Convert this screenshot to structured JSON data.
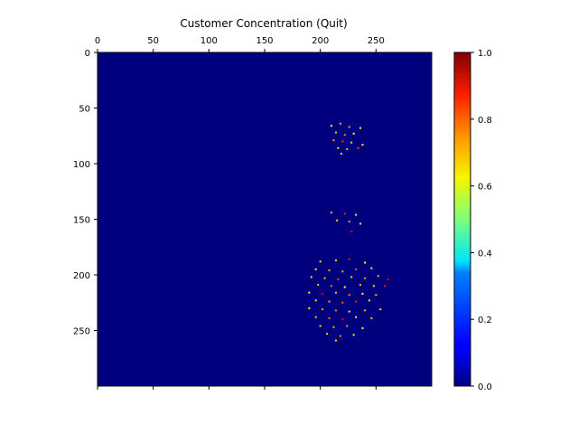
{
  "chart_data": {
    "type": "heatmap",
    "title": "Customer Concentration (Quit)",
    "xlabel": "",
    "ylabel": "",
    "colormap": "jet",
    "xlim": [
      0,
      300
    ],
    "ylim": [
      300,
      0
    ],
    "x_ticks": [
      0,
      50,
      100,
      150,
      200,
      250
    ],
    "y_ticks": [
      0,
      50,
      100,
      150,
      200,
      250
    ],
    "colorbar": {
      "range": [
        0,
        1
      ],
      "ticks": [
        "0.0",
        "0.2",
        "0.4",
        "0.6",
        "0.8",
        "1.0"
      ]
    },
    "background_value": 0.0,
    "points": [
      {
        "x": 210,
        "y": 66,
        "value": 0.65
      },
      {
        "x": 218,
        "y": 64,
        "value": 0.7
      },
      {
        "x": 226,
        "y": 67,
        "value": 0.72
      },
      {
        "x": 236,
        "y": 68,
        "value": 0.6
      },
      {
        "x": 214,
        "y": 72,
        "value": 0.68
      },
      {
        "x": 222,
        "y": 74,
        "value": 0.75
      },
      {
        "x": 230,
        "y": 73,
        "value": 0.62
      },
      {
        "x": 212,
        "y": 79,
        "value": 0.7
      },
      {
        "x": 220,
        "y": 80,
        "value": 0.82
      },
      {
        "x": 228,
        "y": 81,
        "value": 0.66
      },
      {
        "x": 238,
        "y": 83,
        "value": 0.58
      },
      {
        "x": 216,
        "y": 86,
        "value": 0.64
      },
      {
        "x": 224,
        "y": 87,
        "value": 0.7
      },
      {
        "x": 234,
        "y": 86,
        "value": 0.8
      },
      {
        "x": 219,
        "y": 91,
        "value": 0.6
      },
      {
        "x": 210,
        "y": 144,
        "value": 0.7
      },
      {
        "x": 222,
        "y": 145,
        "value": 0.85
      },
      {
        "x": 232,
        "y": 146,
        "value": 0.6
      },
      {
        "x": 215,
        "y": 151,
        "value": 0.65
      },
      {
        "x": 226,
        "y": 152,
        "value": 0.72
      },
      {
        "x": 236,
        "y": 154,
        "value": 0.6
      },
      {
        "x": 228,
        "y": 161,
        "value": 0.9
      },
      {
        "x": 200,
        "y": 188,
        "value": 0.6
      },
      {
        "x": 214,
        "y": 187,
        "value": 0.68
      },
      {
        "x": 226,
        "y": 186,
        "value": 0.85
      },
      {
        "x": 240,
        "y": 189,
        "value": 0.62
      },
      {
        "x": 196,
        "y": 195,
        "value": 0.66
      },
      {
        "x": 208,
        "y": 196,
        "value": 0.72
      },
      {
        "x": 220,
        "y": 197,
        "value": 0.7
      },
      {
        "x": 232,
        "y": 195,
        "value": 0.78
      },
      {
        "x": 246,
        "y": 194,
        "value": 0.62
      },
      {
        "x": 192,
        "y": 202,
        "value": 0.64
      },
      {
        "x": 204,
        "y": 203,
        "value": 0.7
      },
      {
        "x": 216,
        "y": 204,
        "value": 0.82
      },
      {
        "x": 228,
        "y": 202,
        "value": 0.66
      },
      {
        "x": 240,
        "y": 203,
        "value": 0.72
      },
      {
        "x": 252,
        "y": 201,
        "value": 0.7
      },
      {
        "x": 261,
        "y": 204,
        "value": 0.9
      },
      {
        "x": 198,
        "y": 209,
        "value": 0.68
      },
      {
        "x": 210,
        "y": 210,
        "value": 0.75
      },
      {
        "x": 222,
        "y": 211,
        "value": 0.62
      },
      {
        "x": 236,
        "y": 209,
        "value": 0.7
      },
      {
        "x": 248,
        "y": 210,
        "value": 0.66
      },
      {
        "x": 258,
        "y": 210,
        "value": 0.85
      },
      {
        "x": 190,
        "y": 216,
        "value": 0.62
      },
      {
        "x": 202,
        "y": 217,
        "value": 0.9
      },
      {
        "x": 214,
        "y": 216,
        "value": 0.68
      },
      {
        "x": 226,
        "y": 218,
        "value": 0.74
      },
      {
        "x": 238,
        "y": 217,
        "value": 0.62
      },
      {
        "x": 250,
        "y": 218,
        "value": 0.7
      },
      {
        "x": 196,
        "y": 223,
        "value": 0.66
      },
      {
        "x": 208,
        "y": 224,
        "value": 0.7
      },
      {
        "x": 220,
        "y": 225,
        "value": 0.78
      },
      {
        "x": 232,
        "y": 224,
        "value": 0.85
      },
      {
        "x": 244,
        "y": 223,
        "value": 0.64
      },
      {
        "x": 190,
        "y": 230,
        "value": 0.62
      },
      {
        "x": 202,
        "y": 231,
        "value": 0.7
      },
      {
        "x": 214,
        "y": 232,
        "value": 0.74
      },
      {
        "x": 226,
        "y": 233,
        "value": 0.62
      },
      {
        "x": 240,
        "y": 232,
        "value": 0.7
      },
      {
        "x": 254,
        "y": 231,
        "value": 0.66
      },
      {
        "x": 196,
        "y": 238,
        "value": 0.68
      },
      {
        "x": 208,
        "y": 239,
        "value": 0.76
      },
      {
        "x": 220,
        "y": 240,
        "value": 0.88
      },
      {
        "x": 232,
        "y": 238,
        "value": 0.64
      },
      {
        "x": 246,
        "y": 239,
        "value": 0.7
      },
      {
        "x": 200,
        "y": 246,
        "value": 0.66
      },
      {
        "x": 212,
        "y": 247,
        "value": 0.7
      },
      {
        "x": 224,
        "y": 246,
        "value": 0.72
      },
      {
        "x": 238,
        "y": 248,
        "value": 0.62
      },
      {
        "x": 206,
        "y": 253,
        "value": 0.68
      },
      {
        "x": 218,
        "y": 255,
        "value": 0.74
      },
      {
        "x": 230,
        "y": 254,
        "value": 0.6
      },
      {
        "x": 214,
        "y": 259,
        "value": 0.66
      }
    ]
  }
}
